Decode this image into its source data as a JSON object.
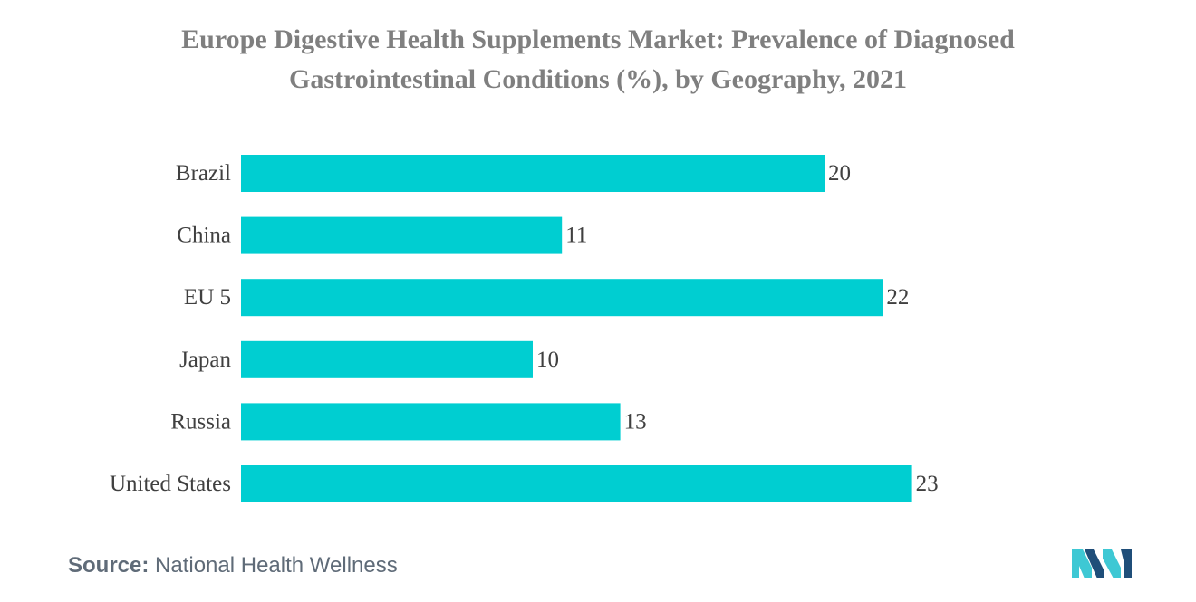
{
  "title_line1": "Europe Digestive Health Supplements Market: Prevalence of Diagnosed",
  "title_line2": "Gastrointestinal Conditions (%), by Geography, 2021",
  "source": {
    "label": "Source:",
    "text": "National Health Wellness"
  },
  "colors": {
    "bar": "#00ced1",
    "axis_text": "#404040",
    "title": "#7f7f7f",
    "logo_dark": "#1f4e79",
    "logo_light": "#3ec8d4"
  },
  "chart_data": {
    "type": "bar",
    "orientation": "horizontal",
    "title": "Europe Digestive Health Supplements Market: Prevalence of Diagnosed Gastrointestinal Conditions (%), by Geography, 2021",
    "categories": [
      "Brazil",
      "China",
      "EU 5",
      "Japan",
      "Russia",
      "United States"
    ],
    "values": [
      20,
      11,
      22,
      10,
      13,
      23
    ],
    "xlabel": "",
    "ylabel": "",
    "xlim": [
      0,
      25
    ],
    "grid": false,
    "data_labels": true
  }
}
